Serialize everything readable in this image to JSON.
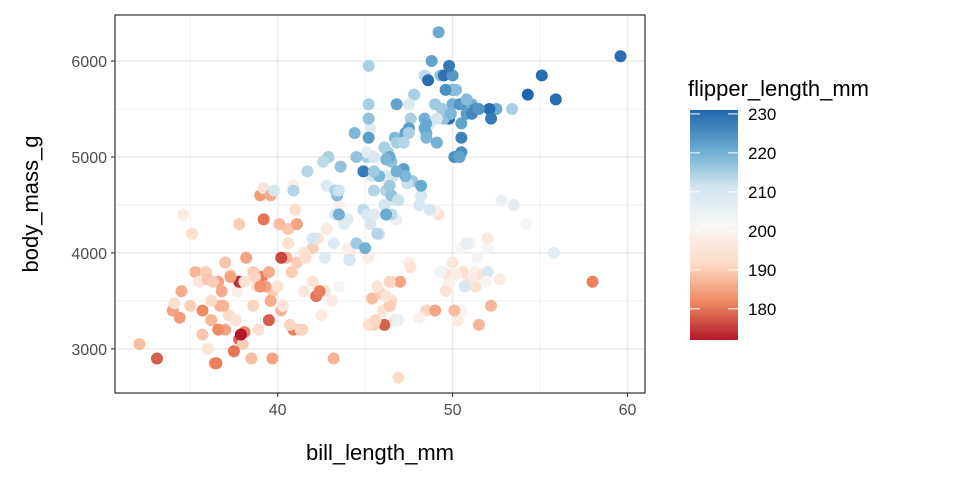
{
  "chart_data": {
    "type": "scatter",
    "xlabel": "bill_length_mm",
    "ylabel": "body_mass_g",
    "xlim": [
      30.7,
      61.0
    ],
    "ylim": [
      2540,
      6480
    ],
    "x_ticks": [
      40,
      50,
      60
    ],
    "y_ticks": [
      3000,
      4000,
      5000,
      6000
    ],
    "x_tick_labels": [
      "40",
      "50",
      "60"
    ],
    "y_tick_labels": [
      "3000",
      "4000",
      "5000",
      "6000"
    ],
    "grid": true,
    "color_legend": {
      "title": "flipper_length_mm",
      "position": "right",
      "range": [
        172,
        231
      ],
      "ticks": [
        180,
        190,
        200,
        210,
        220,
        230
      ],
      "tick_labels": [
        "180",
        "190",
        "200",
        "210",
        "220",
        "230"
      ],
      "palette": [
        "#B2182B",
        "#EF8A62",
        "#FDDBC7",
        "#F7F7F7",
        "#D1E5F0",
        "#67A9CF",
        "#2166AC"
      ]
    },
    "columns": [
      "bill_length_mm",
      "body_mass_g",
      "flipper_length_mm"
    ],
    "points": [
      [
        32.1,
        3050,
        188
      ],
      [
        33.1,
        2900,
        178
      ],
      [
        34.5,
        3600,
        186
      ],
      [
        34.6,
        4400,
        198
      ],
      [
        34.0,
        3400,
        185
      ],
      [
        34.4,
        3325,
        184
      ],
      [
        35.0,
        3450,
        190
      ],
      [
        35.3,
        3800,
        187
      ],
      [
        35.5,
        3700,
        195
      ],
      [
        35.9,
        3800,
        190
      ],
      [
        36.0,
        3725,
        189
      ],
      [
        36.2,
        3300,
        187
      ],
      [
        36.4,
        2850,
        184
      ],
      [
        36.6,
        3700,
        185
      ],
      [
        36.7,
        3450,
        187
      ],
      [
        36.8,
        3600,
        186
      ],
      [
        37.0,
        3900,
        189
      ],
      [
        37.2,
        3350,
        192
      ],
      [
        37.3,
        3775,
        192
      ],
      [
        37.6,
        3300,
        194
      ],
      [
        37.7,
        3600,
        198
      ],
      [
        37.8,
        3100,
        178
      ],
      [
        37.8,
        4300,
        190
      ],
      [
        38.1,
        3175,
        181
      ],
      [
        38.2,
        3950,
        185
      ],
      [
        38.6,
        3800,
        190
      ],
      [
        38.8,
        3650,
        195
      ],
      [
        39.0,
        4600,
        184
      ],
      [
        39.1,
        3750,
        181
      ],
      [
        39.2,
        4350,
        180
      ],
      [
        39.2,
        4675,
        195
      ],
      [
        39.5,
        3800,
        186
      ],
      [
        39.6,
        4600,
        186
      ],
      [
        39.7,
        3600,
        190
      ],
      [
        40.0,
        3650,
        194
      ],
      [
        40.2,
        3400,
        187
      ],
      [
        40.3,
        3450,
        195
      ],
      [
        40.6,
        4250,
        189
      ],
      [
        40.8,
        3800,
        190
      ],
      [
        41.1,
        4300,
        185
      ],
      [
        41.4,
        3200,
        190
      ],
      [
        41.5,
        3600,
        196
      ],
      [
        42.0,
        4050,
        190
      ],
      [
        42.2,
        3550,
        180
      ],
      [
        42.5,
        3350,
        197
      ],
      [
        42.7,
        3600,
        196
      ],
      [
        43.1,
        3500,
        197
      ],
      [
        43.2,
        2900,
        187
      ],
      [
        44.1,
        4000,
        196
      ],
      [
        44.1,
        3925,
        210
      ],
      [
        38.0,
        3050,
        190
      ],
      [
        36.5,
        2850,
        181
      ],
      [
        37.5,
        2975,
        180
      ],
      [
        38.5,
        2900,
        188
      ],
      [
        39.7,
        2900,
        185
      ],
      [
        35.7,
        3150,
        189
      ],
      [
        36.9,
        3450,
        187
      ],
      [
        39.5,
        3300,
        178
      ],
      [
        40.9,
        3200,
        181
      ],
      [
        41.5,
        4000,
        195
      ],
      [
        41.1,
        3900,
        190
      ],
      [
        40.5,
        3950,
        187
      ],
      [
        40.1,
        4300,
        188
      ],
      [
        40.6,
        4100,
        193
      ],
      [
        39.3,
        3650,
        185
      ],
      [
        38.6,
        3450,
        191
      ],
      [
        37.9,
        3150,
        172
      ],
      [
        36.0,
        3000,
        195
      ],
      [
        35.1,
        4200,
        193
      ],
      [
        34.1,
        3475,
        193
      ],
      [
        37.0,
        3200,
        185
      ],
      [
        38.9,
        3200,
        193
      ],
      [
        39.8,
        4650,
        210
      ],
      [
        41.3,
        3200,
        191
      ],
      [
        42.3,
        4150,
        195
      ],
      [
        42.8,
        4250,
        197
      ],
      [
        43.5,
        4500,
        199
      ],
      [
        37.8,
        3700,
        174
      ],
      [
        39.6,
        3500,
        186
      ],
      [
        40.7,
        3250,
        191
      ],
      [
        36.3,
        3700,
        190
      ],
      [
        37.3,
        3750,
        185
      ],
      [
        36.6,
        3200,
        182
      ],
      [
        38.7,
        3750,
        191
      ],
      [
        42.0,
        3700,
        194
      ],
      [
        42.9,
        4700,
        201
      ],
      [
        41.0,
        4450,
        193
      ],
      [
        40.9,
        4700,
        198
      ],
      [
        44.0,
        4050,
        199
      ],
      [
        38.1,
        3700,
        194
      ],
      [
        35.7,
        3400,
        182
      ],
      [
        36.2,
        3500,
        192
      ],
      [
        41.6,
        3950,
        193
      ],
      [
        40.2,
        3950,
        176
      ],
      [
        39.0,
        3650,
        183
      ],
      [
        46.5,
        3500,
        192
      ],
      [
        50.0,
        3900,
        196
      ],
      [
        51.3,
        3650,
        193
      ],
      [
        45.4,
        3525,
        188
      ],
      [
        52.7,
        3725,
        197
      ],
      [
        45.2,
        3950,
        198
      ],
      [
        46.1,
        3250,
        178
      ],
      [
        51.3,
        3750,
        197
      ],
      [
        46.0,
        3400,
        195
      ],
      [
        51.3,
        3800,
        198
      ],
      [
        46.6,
        3700,
        193
      ],
      [
        51.7,
        3775,
        194
      ],
      [
        47.0,
        3700,
        185
      ],
      [
        52.0,
        4050,
        201
      ],
      [
        45.9,
        3575,
        190
      ],
      [
        50.5,
        4050,
        201
      ],
      [
        50.3,
        3300,
        197
      ],
      [
        58.0,
        3700,
        181
      ],
      [
        46.4,
        3450,
        190
      ],
      [
        49.2,
        4400,
        195
      ],
      [
        42.4,
        3600,
        181
      ],
      [
        48.5,
        3400,
        191
      ],
      [
        50.6,
        3800,
        193
      ],
      [
        46.7,
        3300,
        195
      ],
      [
        52.0,
        4150,
        197
      ],
      [
        50.5,
        3400,
        200
      ],
      [
        49.5,
        3800,
        200
      ],
      [
        46.4,
        3700,
        191
      ],
      [
        52.8,
        4550,
        205
      ],
      [
        54.2,
        4300,
        201
      ],
      [
        51.0,
        4100,
        203
      ],
      [
        49.7,
        3775,
        195
      ],
      [
        47.5,
        3900,
        199
      ],
      [
        47.6,
        3850,
        195
      ],
      [
        52.0,
        3800,
        210
      ],
      [
        46.9,
        3300,
        205
      ],
      [
        53.5,
        4500,
        207
      ],
      [
        49.0,
        3400,
        185
      ],
      [
        46.2,
        3550,
        195
      ],
      [
        50.9,
        3700,
        197
      ],
      [
        45.5,
        3250,
        190
      ],
      [
        50.9,
        3675,
        196
      ],
      [
        50.8,
        4100,
        210
      ],
      [
        50.1,
        3400,
        188
      ],
      [
        49.0,
        4450,
        199
      ],
      [
        51.5,
        3250,
        187
      ],
      [
        49.8,
        3675,
        199
      ],
      [
        48.1,
        3325,
        199
      ],
      [
        51.4,
        3950,
        201
      ],
      [
        45.7,
        3650,
        195
      ],
      [
        50.7,
        3650,
        210
      ],
      [
        52.2,
        3450,
        187
      ],
      [
        45.2,
        3250,
        193
      ],
      [
        49.3,
        3800,
        203
      ],
      [
        50.2,
        3775,
        198
      ],
      [
        45.6,
        3300,
        191
      ],
      [
        51.9,
        3700,
        201
      ],
      [
        46.8,
        4350,
        205
      ],
      [
        55.8,
        4000,
        207
      ],
      [
        43.5,
        3650,
        202
      ],
      [
        49.6,
        3600,
        195
      ],
      [
        50.8,
        4100,
        206
      ],
      [
        46.9,
        2700,
        192
      ],
      [
        46.1,
        4500,
        211
      ],
      [
        50.0,
        5700,
        230
      ],
      [
        48.7,
        4450,
        210
      ],
      [
        50.0,
        5700,
        218
      ],
      [
        47.6,
        5400,
        215
      ],
      [
        46.5,
        4550,
        210
      ],
      [
        45.4,
        4800,
        211
      ],
      [
        46.7,
        5200,
        219
      ],
      [
        43.3,
        4400,
        209
      ],
      [
        46.8,
        5150,
        215
      ],
      [
        40.9,
        4650,
        214
      ],
      [
        49.0,
        5550,
        216
      ],
      [
        45.5,
        4650,
        214
      ],
      [
        48.4,
        5850,
        213
      ],
      [
        45.8,
        4200,
        210
      ],
      [
        49.3,
        5850,
        217
      ],
      [
        42.0,
        4150,
        210
      ],
      [
        49.2,
        6300,
        221
      ],
      [
        46.2,
        4800,
        209
      ],
      [
        48.7,
        5350,
        222
      ],
      [
        50.2,
        5700,
        218
      ],
      [
        45.1,
        5000,
        215
      ],
      [
        46.5,
        4400,
        213
      ],
      [
        46.3,
        5050,
        215
      ],
      [
        42.9,
        5000,
        215
      ],
      [
        46.1,
        5100,
        215
      ],
      [
        44.5,
        4100,
        216
      ],
      [
        47.8,
        5650,
        215
      ],
      [
        48.2,
        4600,
        210
      ],
      [
        50.0,
        5550,
        220
      ],
      [
        47.3,
        5250,
        222
      ],
      [
        42.8,
        4700,
        209
      ],
      [
        45.1,
        5050,
        207
      ],
      [
        59.6,
        6050,
        230
      ],
      [
        49.1,
        5150,
        220
      ],
      [
        48.4,
        5400,
        220
      ],
      [
        42.6,
        4950,
        213
      ],
      [
        44.4,
        5250,
        219
      ],
      [
        44.0,
        4350,
        208
      ],
      [
        48.7,
        5350,
        208
      ],
      [
        42.7,
        3950,
        208
      ],
      [
        49.6,
        5700,
        225
      ],
      [
        45.3,
        4300,
        210
      ],
      [
        49.6,
        5450,
        216
      ],
      [
        50.5,
        5350,
        222
      ],
      [
        43.6,
        4900,
        217
      ],
      [
        45.5,
        5000,
        210
      ],
      [
        50.5,
        5050,
        225
      ],
      [
        44.9,
        4450,
        213
      ],
      [
        45.2,
        5550,
        215
      ],
      [
        46.6,
        4800,
        210
      ],
      [
        48.5,
        5250,
        220
      ],
      [
        45.1,
        4400,
        210
      ],
      [
        50.1,
        5000,
        225
      ],
      [
        46.5,
        4950,
        217
      ],
      [
        45.0,
        4050,
        220
      ],
      [
        43.8,
        4300,
        208
      ],
      [
        45.5,
        4400,
        208
      ],
      [
        43.2,
        4100,
        208
      ],
      [
        50.4,
        5550,
        224
      ],
      [
        45.3,
        5300,
        208
      ],
      [
        46.2,
        4400,
        221
      ],
      [
        45.7,
        4200,
        214
      ],
      [
        54.3,
        5650,
        231
      ],
      [
        45.8,
        4800,
        219
      ],
      [
        49.8,
        5400,
        230
      ],
      [
        46.2,
        4650,
        214
      ],
      [
        49.5,
        5850,
        229
      ],
      [
        43.5,
        4400,
        220
      ],
      [
        50.7,
        5550,
        223
      ],
      [
        47.7,
        4750,
        216
      ],
      [
        46.4,
        5000,
        221
      ],
      [
        48.2,
        4700,
        221
      ],
      [
        46.5,
        4600,
        217
      ],
      [
        46.4,
        4700,
        216
      ],
      [
        48.6,
        5800,
        230
      ],
      [
        47.5,
        5550,
        209
      ],
      [
        51.1,
        5550,
        220
      ],
      [
        45.2,
        5950,
        215
      ],
      [
        45.2,
        5200,
        223
      ],
      [
        52.5,
        5500,
        221
      ],
      [
        47.4,
        4725,
        212
      ],
      [
        50.0,
        5850,
        224
      ],
      [
        44.9,
        4850,
        228
      ],
      [
        50.8,
        5600,
        218
      ],
      [
        43.4,
        4600,
        218
      ],
      [
        51.3,
        5500,
        225
      ],
      [
        47.5,
        5300,
        223
      ],
      [
        52.1,
        5500,
        230
      ],
      [
        47.5,
        5250,
        215
      ],
      [
        52.2,
        5400,
        228
      ],
      [
        45.5,
        4850,
        216
      ],
      [
        49.5,
        5400,
        217
      ],
      [
        44.5,
        5000,
        217
      ],
      [
        50.8,
        5450,
        223
      ],
      [
        49.4,
        5500,
        216
      ],
      [
        46.9,
        4550,
        212
      ],
      [
        48.4,
        5300,
        221
      ],
      [
        51.1,
        5450,
        226
      ],
      [
        48.5,
        5350,
        221
      ],
      [
        55.9,
        5600,
        230
      ],
      [
        47.2,
        4875,
        223
      ],
      [
        49.1,
        5400,
        210
      ],
      [
        47.3,
        4800,
        219
      ],
      [
        46.8,
        4850,
        220
      ],
      [
        41.7,
        4850,
        214
      ],
      [
        53.4,
        5500,
        215
      ],
      [
        43.3,
        4650,
        215
      ],
      [
        48.1,
        4500,
        210
      ],
      [
        50.5,
        5200,
        227
      ],
      [
        49.8,
        5950,
        228
      ],
      [
        43.5,
        4650,
        212
      ],
      [
        51.5,
        5500,
        224
      ],
      [
        46.2,
        4975,
        219
      ],
      [
        55.1,
        5850,
        230
      ],
      [
        48.8,
        6000,
        222
      ],
      [
        47.2,
        5150,
        214
      ],
      [
        46.8,
        5550,
        222
      ],
      [
        50.4,
        5000,
        222
      ],
      [
        45.2,
        5400,
        217
      ],
      [
        49.9,
        5450,
        219
      ],
      [
        48.5,
        5200,
        219
      ]
    ]
  }
}
